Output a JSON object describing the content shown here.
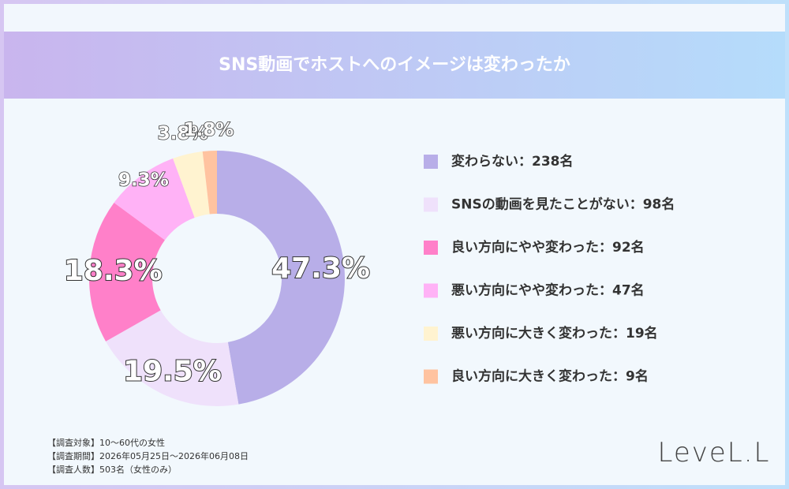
{
  "chart_data": {
    "type": "donut",
    "title": "SNS動画でホストへのイメージは変わったか",
    "categories": [
      "変わらない：238名",
      "SNSの動画を見たことがない：98名",
      "良い方向にやや変わった：92名",
      "悪い方向にやや変わった：47名",
      "悪い方向に大きく変わった：19名",
      "良い方向に大きく変わった：9名"
    ],
    "values": [
      47.3,
      19.5,
      18.3,
      9.3,
      3.8,
      1.8
    ],
    "value_labels": [
      "47.3%",
      "19.5%",
      "18.3%",
      "9.3%",
      "3.8%",
      "1.8%"
    ],
    "colors": [
      "#b8aee8",
      "#efe1fb",
      "#ff80c9",
      "#ffb2f6",
      "#fff3d0",
      "#ffc3a0"
    ],
    "notes": [
      "【調査対象】10～60代の女性",
      "【調査期間】2026年05月25日～2026年06月08日",
      "【調査人数】503名（女性のみ）"
    ],
    "logo": "LeveL.L"
  }
}
